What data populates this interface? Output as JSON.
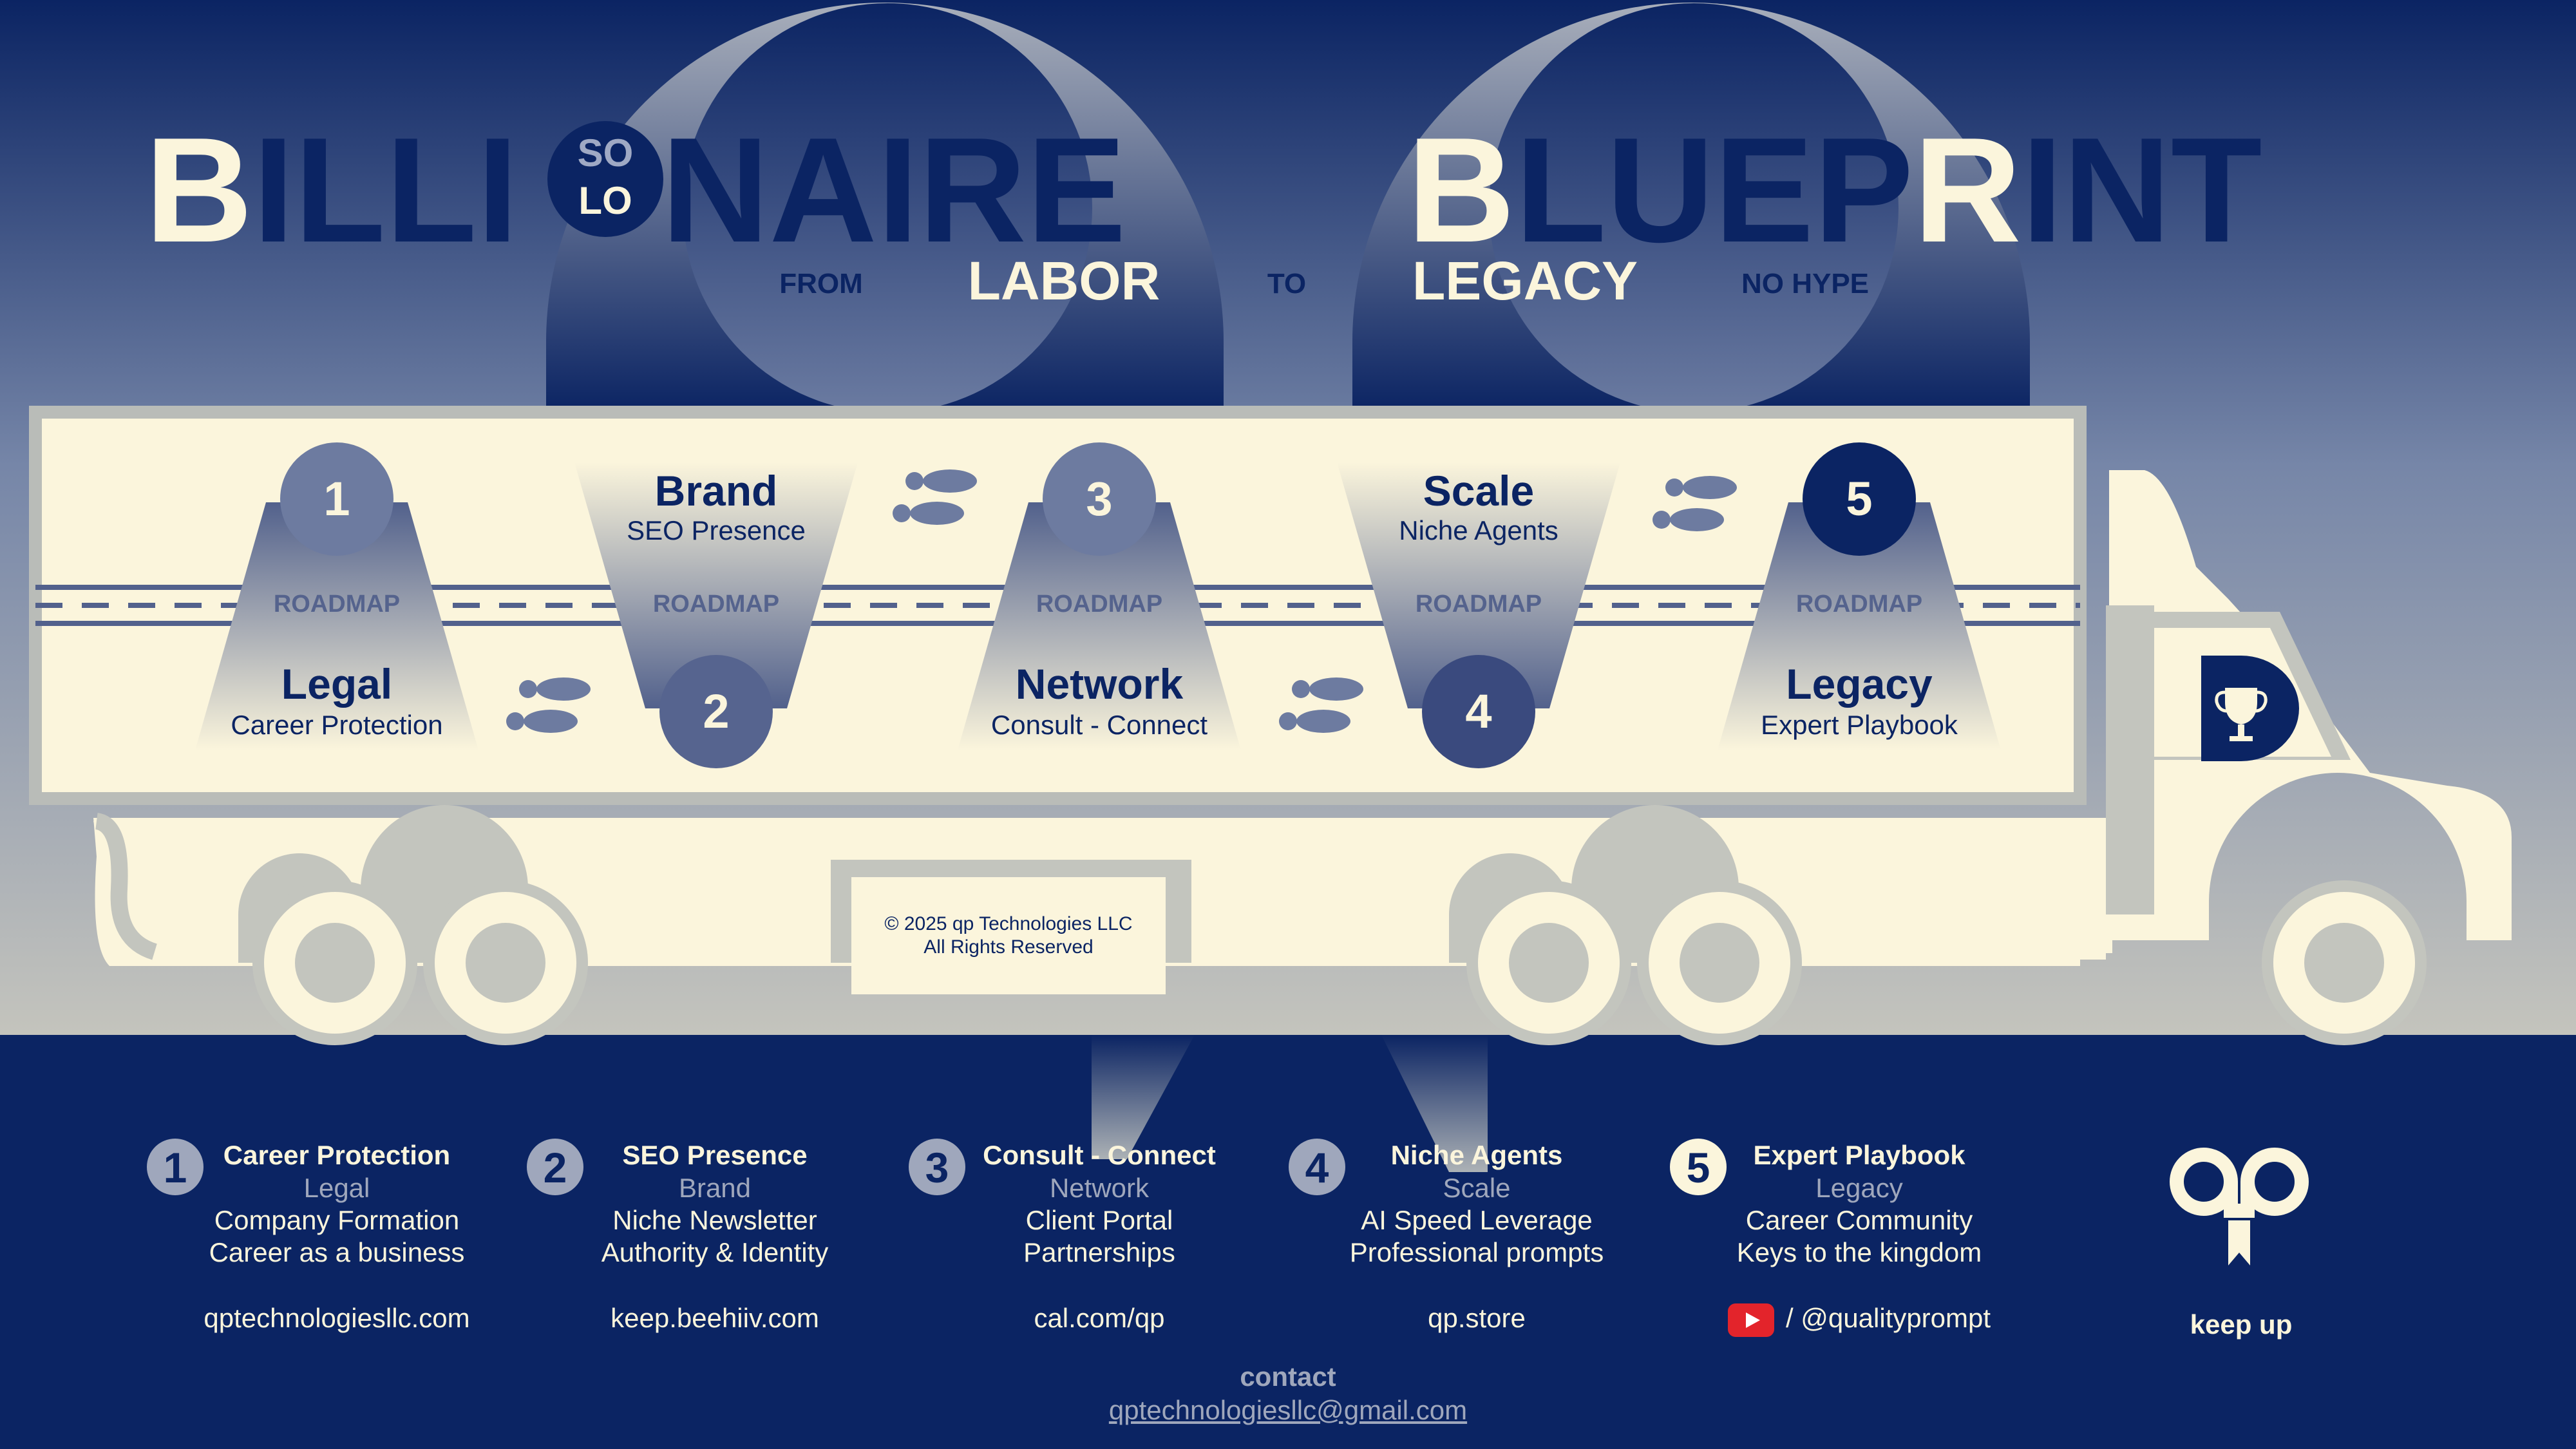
{
  "title": {
    "letters_left": [
      "B",
      "ILLI",
      "NAIRE"
    ],
    "solo_top": "SO",
    "solo_bottom": "LO",
    "letters_right": [
      "B",
      "LUEP",
      "R",
      "INT"
    ]
  },
  "tagline": {
    "from": "FROM",
    "labor": "LABOR",
    "to": "TO",
    "legacy": "LEGACY",
    "no_hype": "NO HYPE"
  },
  "roadmap_label": "ROADMAP",
  "steps": [
    {
      "num": "1",
      "title": "Legal",
      "subtitle": "Career Protection"
    },
    {
      "num": "2",
      "title": "Brand",
      "subtitle": "SEO Presence"
    },
    {
      "num": "3",
      "title": "Network",
      "subtitle": "Consult - Connect"
    },
    {
      "num": "4",
      "title": "Scale",
      "subtitle": "Niche Agents"
    },
    {
      "num": "5",
      "title": "Legacy",
      "subtitle": "Expert Playbook"
    }
  ],
  "copyright": {
    "line1": "© 2025 qp Technologies LLC",
    "line2": "All Rights Reserved"
  },
  "footer": [
    {
      "num": "1",
      "heading": "Career Protection",
      "sub": "Legal",
      "lines": [
        "Company Formation",
        "Career as a business"
      ],
      "link": "qptechnologiesllc.com"
    },
    {
      "num": "2",
      "heading": "SEO Presence",
      "sub": "Brand",
      "lines": [
        "Niche Newsletter",
        "Authority & Identity"
      ],
      "link": "keep.beehiiv.com"
    },
    {
      "num": "3",
      "heading": "Consult - Connect",
      "sub": "Network",
      "lines": [
        "Client Portal",
        "Partnerships"
      ],
      "link": "cal.com/qp"
    },
    {
      "num": "4",
      "heading": "Niche Agents",
      "sub": "Scale",
      "lines": [
        "AI Speed Leverage",
        "Professional prompts"
      ],
      "link": "qp.store"
    },
    {
      "num": "5",
      "heading": "Expert Playbook",
      "sub": "Legacy",
      "lines": [
        "Career Community",
        "Keys to the kingdom"
      ],
      "link": "/ @qualityprompt"
    }
  ],
  "keep_up": "keep up",
  "contact": {
    "label": "contact",
    "email": "qptechnologiesllc@gmail.com"
  },
  "icons": {
    "cab": "trophy-icon",
    "social": "youtube-icon",
    "brand": "qp-logo-icon",
    "steps": "footprints-icon"
  },
  "colors": {
    "navy": "#0b2463",
    "cream": "#fbf5dc",
    "gray": "#b9bcb8",
    "slate": "#56648f",
    "youtube": "#e3242b"
  }
}
